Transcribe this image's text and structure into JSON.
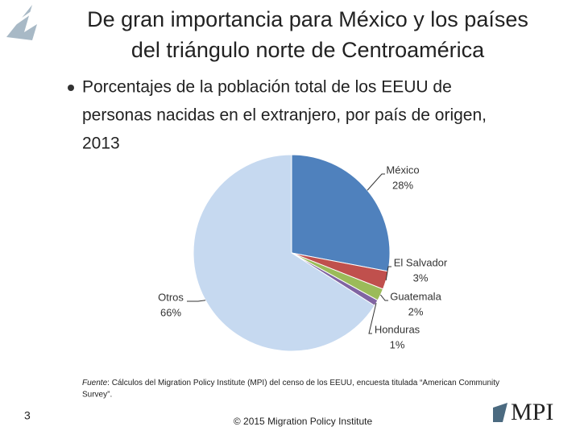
{
  "chart_data": {
    "type": "pie",
    "title": [
      "De gran importancia para México y los países",
      "del triángulo norte de Centroamérica"
    ],
    "subtitle": [
      "Porcentajes de la población total de los EEUU de",
      "personas nacidas en el extranjero, por país de origen,",
      "2013"
    ],
    "categories": [
      "México",
      "El Salvador",
      "Guatemala",
      "Honduras",
      "Otros"
    ],
    "values": [
      28,
      3,
      2,
      1,
      66
    ],
    "value_labels": [
      "28%",
      "3%",
      "2%",
      "1%",
      "66%"
    ],
    "colors": [
      "#4f81bd",
      "#c0504d",
      "#9bbb59",
      "#8064a2",
      "#c6d9f0"
    ],
    "source_label": "Fuente",
    "source": [
      ": Cálculos del Migration Policy Institute (MPI) del censo de los EEUU, encuesta titulada “American Community",
      "Survey”."
    ]
  },
  "slide": {
    "number": "3",
    "footer": "© 2015 Migration Policy Institute",
    "logo": "MPI"
  }
}
